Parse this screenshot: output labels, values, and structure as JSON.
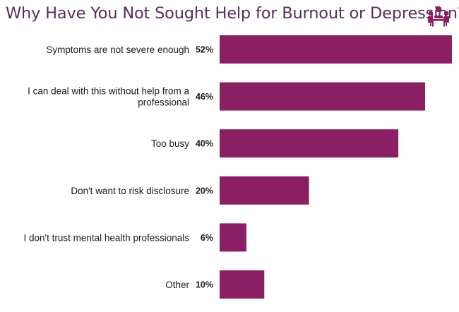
{
  "title": "Why Have You Not Sought Help for Burnout or Depression?",
  "logo_icon": "people-meeting-icon",
  "colors": {
    "bar": "#8b1f64",
    "title": "#5a2d5e"
  },
  "chart_data": {
    "type": "bar",
    "orientation": "horizontal",
    "title": "Why Have You Not Sought Help for Burnout or Depression?",
    "categories": [
      [
        "Symptoms are not severe enough"
      ],
      [
        "I can deal with this without help from a",
        "professional"
      ],
      [
        "Too busy"
      ],
      [
        "Don't want to risk disclosure"
      ],
      [
        "I don't trust mental health professionals"
      ],
      [
        "Other"
      ]
    ],
    "values": [
      52,
      46,
      40,
      20,
      6,
      10
    ],
    "value_labels": [
      "52%",
      "46%",
      "40%",
      "20%",
      "6%",
      "10%"
    ],
    "unit": "%",
    "xlim": [
      0,
      52
    ],
    "grid": false,
    "legend": "none"
  }
}
